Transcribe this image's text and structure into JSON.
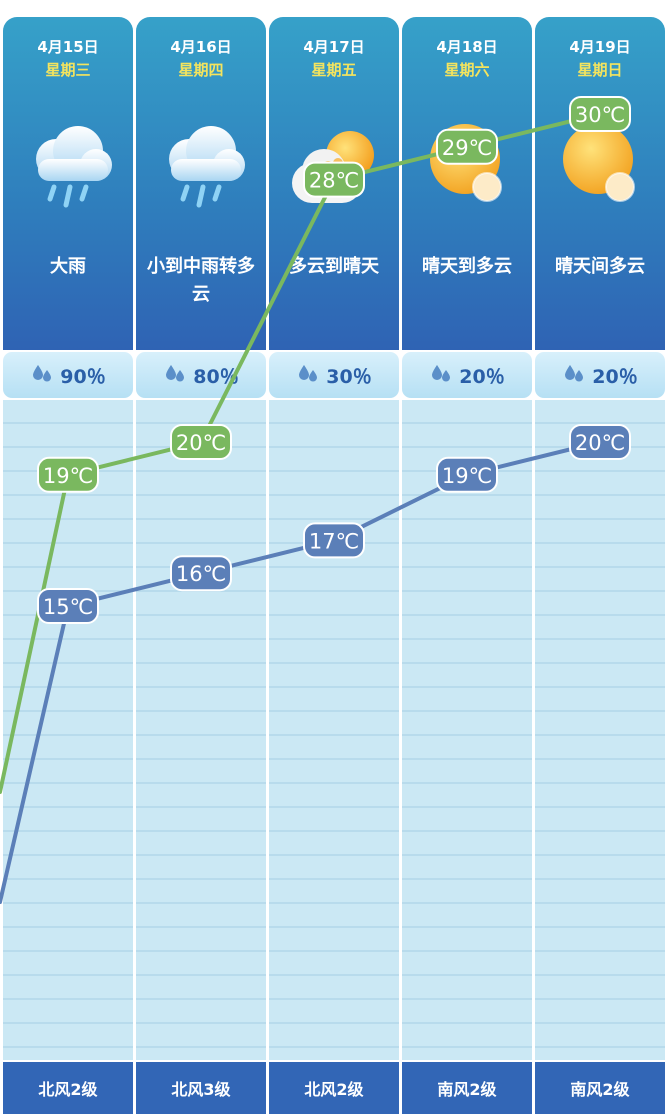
{
  "days": [
    {
      "date": "4月15日",
      "weekday": "星期三",
      "icon": "heavy-rain-icon",
      "desc": "大雨",
      "rain_prob": "90％",
      "wind": "北风2级"
    },
    {
      "date": "4月16日",
      "weekday": "星期四",
      "icon": "moderate-rain-icon",
      "desc": "小到中雨转多云",
      "rain_prob": "80％",
      "wind": "北风3级"
    },
    {
      "date": "4月17日",
      "weekday": "星期五",
      "icon": "cloudy-to-sunny-icon",
      "desc": "多云到晴天",
      "rain_prob": "30％",
      "wind": "北风2级"
    },
    {
      "date": "4月18日",
      "weekday": "星期六",
      "icon": "sunny-to-cloudy-icon",
      "desc": "晴天到多云",
      "rain_prob": "20％",
      "wind": "南风2级"
    },
    {
      "date": "4月19日",
      "weekday": "星期日",
      "icon": "sunny-partly-cloudy-icon",
      "desc": "晴天间多云",
      "rain_prob": "20％",
      "wind": "南风2级"
    }
  ],
  "chart_data": {
    "type": "line",
    "categories": [
      "4月15日",
      "4月16日",
      "4月17日",
      "4月18日",
      "4月19日"
    ],
    "series": [
      {
        "values": [
          19,
          20,
          28,
          29,
          30
        ],
        "labels": [
          "19℃",
          "20℃",
          "28℃",
          "29℃",
          "30℃"
        ],
        "color": "#7ab85f"
      },
      {
        "values": [
          15,
          16,
          17,
          19,
          20
        ],
        "labels": [
          "15℃",
          "16℃",
          "17℃",
          "19℃",
          "20℃"
        ],
        "color": "#5b7fb8"
      }
    ]
  },
  "colors": {
    "header": "#2f7fbd",
    "weekday": "#f4e45e",
    "high": "#7ab85f",
    "low": "#5b7fb8",
    "wind_bar": "#3266b6"
  }
}
